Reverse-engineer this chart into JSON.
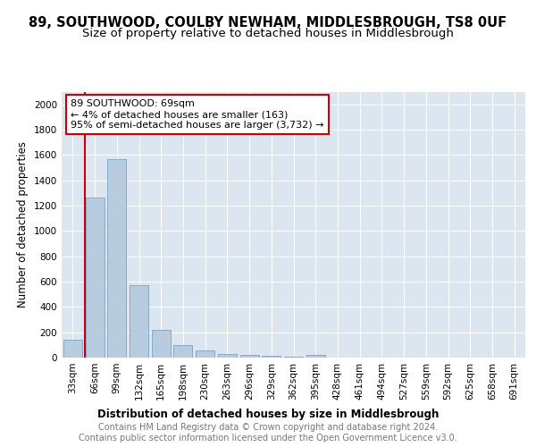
{
  "title": "89, SOUTHWOOD, COULBY NEWHAM, MIDDLESBROUGH, TS8 0UF",
  "subtitle": "Size of property relative to detached houses in Middlesbrough",
  "xlabel": "Distribution of detached houses by size in Middlesbrough",
  "ylabel": "Number of detached properties",
  "categories": [
    "33sqm",
    "66sqm",
    "99sqm",
    "132sqm",
    "165sqm",
    "198sqm",
    "230sqm",
    "263sqm",
    "296sqm",
    "329sqm",
    "362sqm",
    "395sqm",
    "428sqm",
    "461sqm",
    "494sqm",
    "527sqm",
    "559sqm",
    "592sqm",
    "625sqm",
    "658sqm",
    "691sqm"
  ],
  "values": [
    140,
    1265,
    1565,
    575,
    220,
    100,
    57,
    25,
    20,
    15,
    5,
    20,
    0,
    0,
    0,
    0,
    0,
    0,
    0,
    0,
    0
  ],
  "bar_color": "#b8ccdf",
  "bar_edge_color": "#6699bb",
  "bar_width": 0.85,
  "vline_color": "#cc0000",
  "annotation_text": "89 SOUTHWOOD: 69sqm\n← 4% of detached houses are smaller (163)\n95% of semi-detached houses are larger (3,732) →",
  "annotation_box_color": "#cc0000",
  "ylim": [
    0,
    2100
  ],
  "yticks": [
    0,
    200,
    400,
    600,
    800,
    1000,
    1200,
    1400,
    1600,
    1800,
    2000
  ],
  "plot_bg_color": "#dce6f0",
  "footer": "Contains HM Land Registry data © Crown copyright and database right 2024.\nContains public sector information licensed under the Open Government Licence v3.0.",
  "title_fontsize": 10.5,
  "subtitle_fontsize": 9.5,
  "xlabel_fontsize": 8.5,
  "ylabel_fontsize": 8.5,
  "footer_fontsize": 7.0,
  "tick_fontsize": 7.5,
  "annot_fontsize": 8.0
}
